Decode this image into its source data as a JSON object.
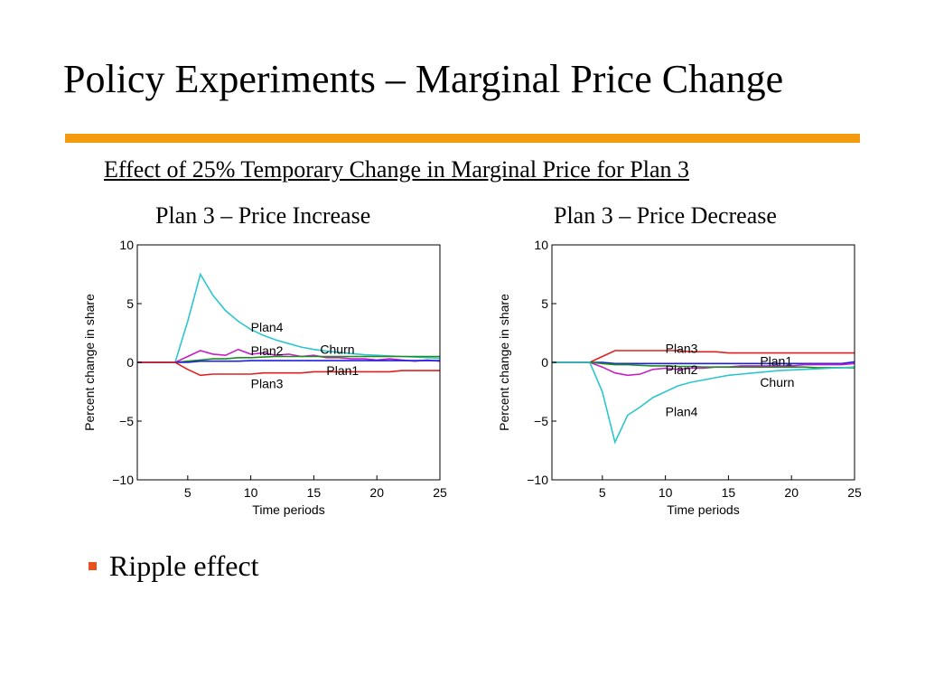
{
  "slide": {
    "title": "Policy Experiments – Marginal Price Change",
    "subtitle": "Effect of 25% Temporary Change in Marginal Price for Plan 3",
    "accent_rule_color": "#f39a0e",
    "bullets": [
      {
        "text": "Ripple effect",
        "marker_color": "#e8501e"
      }
    ]
  },
  "chart_data": [
    {
      "type": "line",
      "title": "Plan 3 – Price Increase",
      "xlabel": "Time periods",
      "ylabel": "Percent change in share",
      "xlim": [
        1,
        25
      ],
      "ylim": [
        -10,
        10
      ],
      "xticks": [
        5,
        10,
        15,
        20,
        25
      ],
      "yticks": [
        10,
        5,
        0,
        -5,
        -10
      ],
      "ytick_labels": [
        "10",
        "5",
        "0",
        "−5",
        "−10"
      ],
      "grid": false,
      "series": [
        {
          "name": "Plan4",
          "color": "#2cc6cc",
          "label_at": [
            10,
            3
          ],
          "x": [
            1,
            2,
            3,
            4,
            5,
            6,
            7,
            8,
            9,
            10,
            11,
            12,
            13,
            14,
            15,
            16,
            17,
            18,
            19,
            20,
            21,
            22,
            23,
            24,
            25
          ],
          "y": [
            0,
            0,
            0,
            0,
            3.5,
            7.5,
            5.7,
            4.4,
            3.5,
            2.8,
            2.3,
            1.9,
            1.6,
            1.3,
            1.1,
            0.95,
            0.85,
            0.75,
            0.65,
            0.6,
            0.55,
            0.5,
            0.45,
            0.4,
            0.35
          ]
        },
        {
          "name": "Plan2",
          "color": "#c71fc7",
          "label_at": [
            10,
            1
          ],
          "x": [
            1,
            2,
            3,
            4,
            5,
            6,
            7,
            8,
            9,
            10,
            11,
            12,
            13,
            14,
            15,
            16,
            17,
            18,
            19,
            20,
            21,
            22,
            23,
            24,
            25
          ],
          "y": [
            0,
            0,
            0,
            0,
            0.5,
            1.0,
            0.7,
            0.6,
            1.1,
            0.7,
            0.8,
            0.6,
            0.7,
            0.5,
            0.6,
            0.4,
            0.4,
            0.3,
            0.3,
            0.2,
            0.3,
            0.2,
            0.1,
            0.2,
            0.1
          ]
        },
        {
          "name": "Churn",
          "color": "#1e8c1e",
          "label_at": [
            15.5,
            1.1
          ],
          "x": [
            1,
            2,
            3,
            4,
            5,
            6,
            7,
            8,
            9,
            10,
            11,
            12,
            13,
            14,
            15,
            16,
            17,
            18,
            19,
            20,
            21,
            22,
            23,
            24,
            25
          ],
          "y": [
            0,
            0,
            0,
            0,
            0.1,
            0.2,
            0.3,
            0.3,
            0.4,
            0.4,
            0.45,
            0.5,
            0.5,
            0.5,
            0.5,
            0.5,
            0.5,
            0.5,
            0.5,
            0.5,
            0.5,
            0.5,
            0.5,
            0.5,
            0.5
          ]
        },
        {
          "name": "Plan1",
          "color": "#1f1fe0",
          "label_at": [
            16,
            -0.7
          ],
          "x": [
            1,
            2,
            3,
            4,
            5,
            6,
            7,
            8,
            9,
            10,
            11,
            12,
            13,
            14,
            15,
            16,
            17,
            18,
            19,
            20,
            21,
            22,
            23,
            24,
            25
          ],
          "y": [
            0,
            0,
            0,
            0,
            0,
            0.1,
            0.1,
            0.1,
            0.1,
            0.15,
            0.15,
            0.15,
            0.15,
            0.15,
            0.15,
            0.15,
            0.15,
            0.15,
            0.15,
            0.15,
            0.15,
            0.15,
            0.15,
            0.15,
            0.15
          ]
        },
        {
          "name": "Plan3",
          "color": "#e02020",
          "label_at": [
            10,
            -1.8
          ],
          "x": [
            1,
            2,
            3,
            4,
            5,
            6,
            7,
            8,
            9,
            10,
            11,
            12,
            13,
            14,
            15,
            16,
            17,
            18,
            19,
            20,
            21,
            22,
            23,
            24,
            25
          ],
          "y": [
            0,
            0,
            0,
            0,
            -0.6,
            -1.1,
            -1.0,
            -1.0,
            -1.0,
            -1.0,
            -0.9,
            -0.9,
            -0.9,
            -0.9,
            -0.8,
            -0.8,
            -0.8,
            -0.8,
            -0.8,
            -0.8,
            -0.8,
            -0.7,
            -0.7,
            -0.7,
            -0.7
          ]
        }
      ]
    },
    {
      "type": "line",
      "title": "Plan 3 – Price Decrease",
      "xlabel": "Time periods",
      "ylabel": "Percent change in share",
      "xlim": [
        1,
        25
      ],
      "ylim": [
        -10,
        10
      ],
      "xticks": [
        5,
        10,
        15,
        20,
        25
      ],
      "yticks": [
        10,
        5,
        0,
        -5,
        -10
      ],
      "ytick_labels": [
        "10",
        "5",
        "0",
        "−5",
        "−10"
      ],
      "grid": false,
      "series": [
        {
          "name": "Plan3",
          "color": "#e02020",
          "label_at": [
            10,
            1.2
          ],
          "x": [
            1,
            2,
            3,
            4,
            5,
            6,
            7,
            8,
            9,
            10,
            11,
            12,
            13,
            14,
            15,
            16,
            17,
            18,
            19,
            20,
            21,
            22,
            23,
            24,
            25
          ],
          "y": [
            0,
            0,
            0,
            0,
            0.5,
            1.0,
            1.0,
            1.0,
            1.0,
            1.0,
            1.0,
            0.9,
            0.9,
            0.9,
            0.8,
            0.8,
            0.8,
            0.8,
            0.8,
            0.8,
            0.8,
            0.8,
            0.8,
            0.8,
            0.8
          ]
        },
        {
          "name": "Plan1",
          "color": "#1f1fe0",
          "label_at": [
            17.5,
            0.1
          ],
          "x": [
            1,
            2,
            3,
            4,
            5,
            6,
            7,
            8,
            9,
            10,
            11,
            12,
            13,
            14,
            15,
            16,
            17,
            18,
            19,
            20,
            21,
            22,
            23,
            24,
            25
          ],
          "y": [
            0,
            0,
            0,
            0,
            0,
            -0.1,
            -0.1,
            -0.1,
            -0.1,
            -0.1,
            -0.1,
            -0.1,
            -0.1,
            -0.1,
            -0.1,
            -0.1,
            -0.1,
            -0.1,
            -0.1,
            -0.1,
            -0.1,
            -0.1,
            -0.1,
            -0.1,
            0.05
          ]
        },
        {
          "name": "Plan2",
          "color": "#c71fc7",
          "label_at": [
            10,
            -0.6
          ],
          "x": [
            1,
            2,
            3,
            4,
            5,
            6,
            7,
            8,
            9,
            10,
            11,
            12,
            13,
            14,
            15,
            16,
            17,
            18,
            19,
            20,
            21,
            22,
            23,
            24,
            25
          ],
          "y": [
            0,
            0,
            0,
            0,
            -0.4,
            -0.9,
            -1.1,
            -1.0,
            -0.6,
            -0.5,
            -0.6,
            -0.5,
            -0.5,
            -0.4,
            -0.4,
            -0.3,
            -0.3,
            -0.3,
            -0.3,
            -0.3,
            -0.2,
            -0.2,
            -0.2,
            -0.2,
            -0.1
          ]
        },
        {
          "name": "Churn",
          "color": "#1e8c1e",
          "label_at": [
            17.5,
            -1.7
          ],
          "x": [
            1,
            2,
            3,
            4,
            5,
            6,
            7,
            8,
            9,
            10,
            11,
            12,
            13,
            14,
            15,
            16,
            17,
            18,
            19,
            20,
            21,
            22,
            23,
            24,
            25
          ],
          "y": [
            0,
            0,
            0,
            0,
            -0.1,
            -0.2,
            -0.2,
            -0.25,
            -0.3,
            -0.3,
            -0.35,
            -0.35,
            -0.4,
            -0.4,
            -0.4,
            -0.4,
            -0.4,
            -0.4,
            -0.4,
            -0.4,
            -0.4,
            -0.45,
            -0.45,
            -0.45,
            -0.45
          ]
        },
        {
          "name": "Plan4",
          "color": "#2cc6cc",
          "label_at": [
            10,
            -4.2
          ],
          "x": [
            1,
            2,
            3,
            4,
            5,
            6,
            7,
            8,
            9,
            10,
            11,
            12,
            13,
            14,
            15,
            16,
            17,
            18,
            19,
            20,
            21,
            22,
            23,
            24,
            25
          ],
          "y": [
            0,
            0,
            0,
            0,
            -2.5,
            -6.8,
            -4.5,
            -3.8,
            -3.0,
            -2.5,
            -2.0,
            -1.7,
            -1.5,
            -1.3,
            -1.1,
            -1.0,
            -0.9,
            -0.8,
            -0.7,
            -0.65,
            -0.6,
            -0.55,
            -0.5,
            -0.45,
            -0.4
          ]
        }
      ]
    }
  ]
}
